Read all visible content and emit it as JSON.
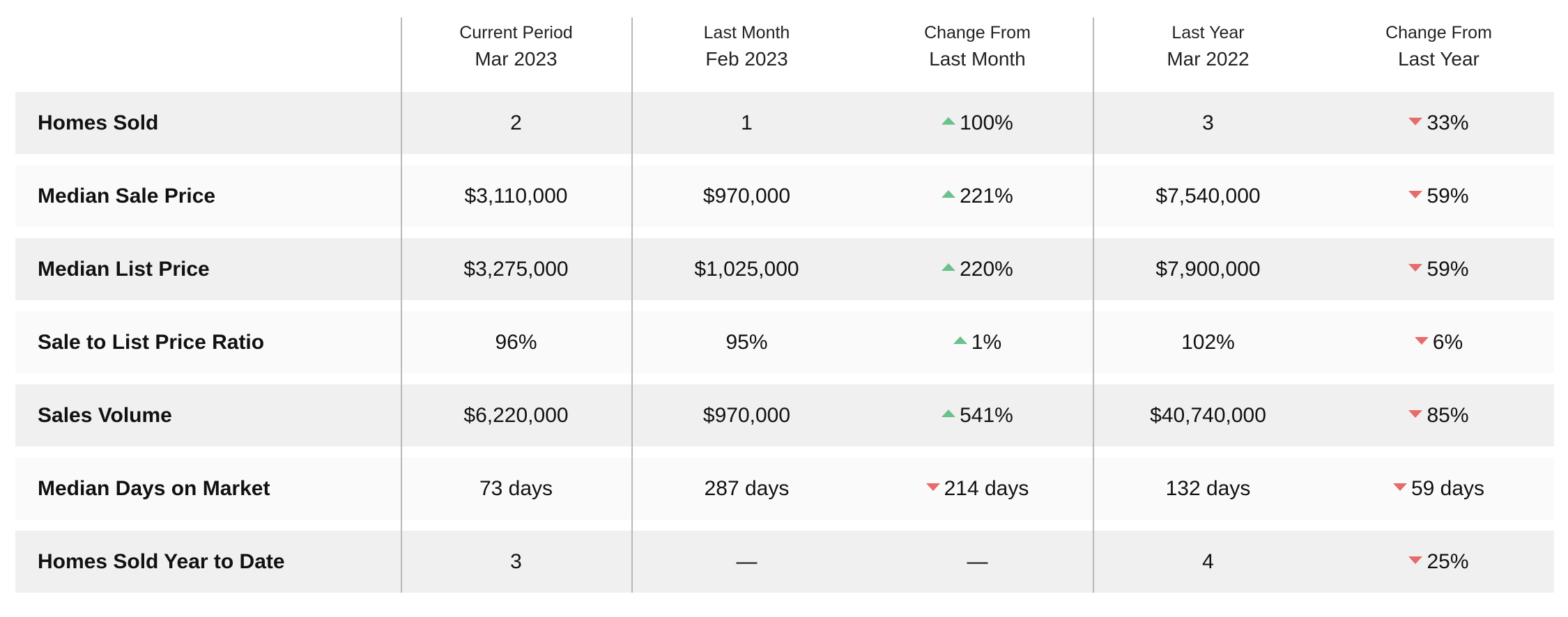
{
  "header": {
    "columns": [
      {
        "line1": "Current Period",
        "line2": "Mar 2023"
      },
      {
        "line1": "Last Month",
        "line2": "Feb 2023"
      },
      {
        "line1": "Change From",
        "line2": "Last Month"
      },
      {
        "line1": "Last Year",
        "line2": "Mar 2022"
      },
      {
        "line1": "Change From",
        "line2": "Last Year"
      }
    ]
  },
  "colors": {
    "up_arrow": "#6cc08b",
    "down_arrow": "#e76b6b",
    "row_shade": "#f0f0f0",
    "row_light": "#fafafa"
  },
  "rows": [
    {
      "label": "Homes Sold",
      "current": "2",
      "last_month": "1",
      "change_month": "100%",
      "change_month_dir": "up",
      "last_year": "3",
      "change_year": "33%",
      "change_year_dir": "down"
    },
    {
      "label": "Median Sale Price",
      "current": "$3,110,000",
      "last_month": "$970,000",
      "change_month": "221%",
      "change_month_dir": "up",
      "last_year": "$7,540,000",
      "change_year": "59%",
      "change_year_dir": "down"
    },
    {
      "label": "Median List Price",
      "current": "$3,275,000",
      "last_month": "$1,025,000",
      "change_month": "220%",
      "change_month_dir": "up",
      "last_year": "$7,900,000",
      "change_year": "59%",
      "change_year_dir": "down"
    },
    {
      "label": "Sale to List Price Ratio",
      "current": "96%",
      "last_month": "95%",
      "change_month": "1%",
      "change_month_dir": "up",
      "last_year": "102%",
      "change_year": "6%",
      "change_year_dir": "down"
    },
    {
      "label": "Sales Volume",
      "current": "$6,220,000",
      "last_month": "$970,000",
      "change_month": "541%",
      "change_month_dir": "up",
      "last_year": "$40,740,000",
      "change_year": "85%",
      "change_year_dir": "down"
    },
    {
      "label": "Median Days on Market",
      "current": "73 days",
      "last_month": "287 days",
      "change_month": "214 days",
      "change_month_dir": "down",
      "last_year": "132 days",
      "change_year": "59 days",
      "change_year_dir": "down"
    },
    {
      "label": "Homes Sold Year to Date",
      "current": "3",
      "last_month": "—",
      "change_month": "—",
      "change_month_dir": "none",
      "last_year": "4",
      "change_year": "25%",
      "change_year_dir": "down"
    }
  ]
}
